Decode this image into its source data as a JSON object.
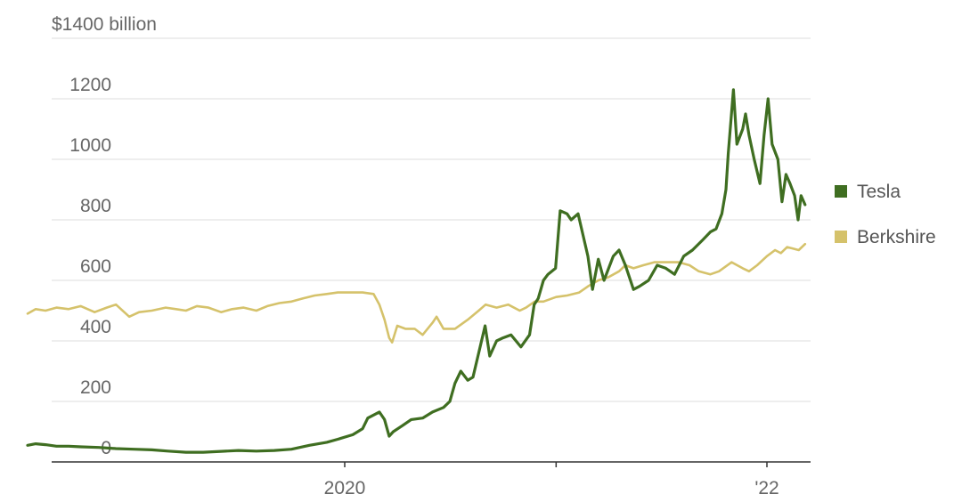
{
  "chart_data": {
    "type": "line",
    "title": "",
    "xlabel": "",
    "ylabel": "",
    "ylim": [
      0,
      1400
    ],
    "y_ticks": [
      {
        "value": 0,
        "label": "0"
      },
      {
        "value": 200,
        "label": "200"
      },
      {
        "value": 400,
        "label": "400"
      },
      {
        "value": 600,
        "label": "600"
      },
      {
        "value": 800,
        "label": "800"
      },
      {
        "value": 1000,
        "label": "1000"
      },
      {
        "value": 1200,
        "label": "1200"
      },
      {
        "value": 1400,
        "label": "$1400 billion"
      }
    ],
    "xlim": [
      "2018-06-01",
      "2022-03-15"
    ],
    "x_ticks": [
      {
        "date": "2020-01-01",
        "label": "2020"
      },
      {
        "date": "2021-01-01",
        "label": ""
      },
      {
        "date": "2022-01-01",
        "label": "'22"
      }
    ],
    "grid": true,
    "legend_position": "right",
    "series": [
      {
        "name": "Tesla",
        "color": "#3f6e21",
        "points": [
          [
            "2018-07-01",
            55
          ],
          [
            "2018-07-15",
            60
          ],
          [
            "2018-08-01",
            57
          ],
          [
            "2018-08-20",
            52
          ],
          [
            "2018-09-10",
            52
          ],
          [
            "2018-10-01",
            50
          ],
          [
            "2018-11-01",
            48
          ],
          [
            "2018-12-01",
            44
          ],
          [
            "2019-01-01",
            42
          ],
          [
            "2019-02-01",
            40
          ],
          [
            "2019-03-01",
            36
          ],
          [
            "2019-04-01",
            32
          ],
          [
            "2019-05-01",
            32
          ],
          [
            "2019-06-01",
            35
          ],
          [
            "2019-07-01",
            38
          ],
          [
            "2019-08-01",
            36
          ],
          [
            "2019-09-01",
            38
          ],
          [
            "2019-10-01",
            42
          ],
          [
            "2019-11-01",
            55
          ],
          [
            "2019-12-01",
            65
          ],
          [
            "2019-12-20",
            75
          ],
          [
            "2020-01-15",
            90
          ],
          [
            "2020-02-01",
            110
          ],
          [
            "2020-02-10",
            145
          ],
          [
            "2020-02-20",
            155
          ],
          [
            "2020-03-01",
            165
          ],
          [
            "2020-03-10",
            140
          ],
          [
            "2020-03-18",
            85
          ],
          [
            "2020-03-25",
            100
          ],
          [
            "2020-04-10",
            120
          ],
          [
            "2020-04-25",
            140
          ],
          [
            "2020-05-15",
            145
          ],
          [
            "2020-06-01",
            165
          ],
          [
            "2020-06-20",
            180
          ],
          [
            "2020-07-01",
            200
          ],
          [
            "2020-07-10",
            260
          ],
          [
            "2020-07-20",
            300
          ],
          [
            "2020-08-01",
            270
          ],
          [
            "2020-08-10",
            280
          ],
          [
            "2020-08-20",
            360
          ],
          [
            "2020-08-31",
            450
          ],
          [
            "2020-09-08",
            350
          ],
          [
            "2020-09-20",
            400
          ],
          [
            "2020-10-01",
            410
          ],
          [
            "2020-10-15",
            420
          ],
          [
            "2020-11-01",
            380
          ],
          [
            "2020-11-16",
            420
          ],
          [
            "2020-11-24",
            520
          ],
          [
            "2020-12-01",
            540
          ],
          [
            "2020-12-10",
            600
          ],
          [
            "2020-12-18",
            620
          ],
          [
            "2020-12-31",
            640
          ],
          [
            "2021-01-08",
            830
          ],
          [
            "2021-01-20",
            820
          ],
          [
            "2021-01-27",
            800
          ],
          [
            "2021-02-08",
            820
          ],
          [
            "2021-02-25",
            680
          ],
          [
            "2021-03-05",
            570
          ],
          [
            "2021-03-15",
            670
          ],
          [
            "2021-03-25",
            600
          ],
          [
            "2021-04-10",
            680
          ],
          [
            "2021-04-20",
            700
          ],
          [
            "2021-05-01",
            650
          ],
          [
            "2021-05-15",
            570
          ],
          [
            "2021-05-25",
            580
          ],
          [
            "2021-06-10",
            600
          ],
          [
            "2021-06-25",
            650
          ],
          [
            "2021-07-10",
            640
          ],
          [
            "2021-07-25",
            620
          ],
          [
            "2021-08-10",
            680
          ],
          [
            "2021-08-25",
            700
          ],
          [
            "2021-09-10",
            730
          ],
          [
            "2021-09-25",
            760
          ],
          [
            "2021-10-05",
            770
          ],
          [
            "2021-10-15",
            820
          ],
          [
            "2021-10-22",
            900
          ],
          [
            "2021-10-26",
            1020
          ],
          [
            "2021-11-04",
            1230
          ],
          [
            "2021-11-10",
            1050
          ],
          [
            "2021-11-20",
            1100
          ],
          [
            "2021-11-25",
            1150
          ],
          [
            "2021-12-01",
            1080
          ],
          [
            "2021-12-10",
            1000
          ],
          [
            "2021-12-20",
            920
          ],
          [
            "2021-12-27",
            1080
          ],
          [
            "2022-01-03",
            1200
          ],
          [
            "2022-01-10",
            1050
          ],
          [
            "2022-01-20",
            1000
          ],
          [
            "2022-01-27",
            860
          ],
          [
            "2022-02-03",
            950
          ],
          [
            "2022-02-10",
            920
          ],
          [
            "2022-02-18",
            880
          ],
          [
            "2022-02-24",
            800
          ],
          [
            "2022-03-01",
            880
          ],
          [
            "2022-03-08",
            850
          ]
        ]
      },
      {
        "name": "Berkshire",
        "color": "#d5c26b",
        "points": [
          [
            "2018-07-01",
            490
          ],
          [
            "2018-07-15",
            505
          ],
          [
            "2018-08-01",
            500
          ],
          [
            "2018-08-20",
            510
          ],
          [
            "2018-09-10",
            505
          ],
          [
            "2018-10-01",
            515
          ],
          [
            "2018-10-25",
            495
          ],
          [
            "2018-11-15",
            510
          ],
          [
            "2018-12-01",
            520
          ],
          [
            "2018-12-24",
            480
          ],
          [
            "2019-01-10",
            495
          ],
          [
            "2019-02-01",
            500
          ],
          [
            "2019-02-25",
            510
          ],
          [
            "2019-03-15",
            505
          ],
          [
            "2019-04-01",
            500
          ],
          [
            "2019-04-20",
            515
          ],
          [
            "2019-05-10",
            510
          ],
          [
            "2019-06-01",
            495
          ],
          [
            "2019-06-20",
            505
          ],
          [
            "2019-07-10",
            510
          ],
          [
            "2019-08-01",
            500
          ],
          [
            "2019-08-20",
            515
          ],
          [
            "2019-09-10",
            525
          ],
          [
            "2019-10-01",
            530
          ],
          [
            "2019-10-20",
            540
          ],
          [
            "2019-11-10",
            550
          ],
          [
            "2019-12-01",
            555
          ],
          [
            "2019-12-20",
            560
          ],
          [
            "2020-01-15",
            560
          ],
          [
            "2020-02-01",
            560
          ],
          [
            "2020-02-20",
            555
          ],
          [
            "2020-03-01",
            520
          ],
          [
            "2020-03-10",
            470
          ],
          [
            "2020-03-18",
            410
          ],
          [
            "2020-03-23",
            395
          ],
          [
            "2020-04-01",
            450
          ],
          [
            "2020-04-15",
            440
          ],
          [
            "2020-05-01",
            440
          ],
          [
            "2020-05-15",
            420
          ],
          [
            "2020-06-01",
            460
          ],
          [
            "2020-06-08",
            480
          ],
          [
            "2020-06-20",
            440
          ],
          [
            "2020-07-10",
            440
          ],
          [
            "2020-08-01",
            470
          ],
          [
            "2020-08-20",
            500
          ],
          [
            "2020-09-01",
            520
          ],
          [
            "2020-09-20",
            510
          ],
          [
            "2020-10-10",
            520
          ],
          [
            "2020-10-30",
            500
          ],
          [
            "2020-11-10",
            510
          ],
          [
            "2020-11-25",
            530
          ],
          [
            "2020-12-10",
            530
          ],
          [
            "2021-01-01",
            545
          ],
          [
            "2021-01-20",
            550
          ],
          [
            "2021-02-10",
            560
          ],
          [
            "2021-02-25",
            580
          ],
          [
            "2021-03-15",
            600
          ],
          [
            "2021-04-01",
            610
          ],
          [
            "2021-04-20",
            630
          ],
          [
            "2021-05-01",
            650
          ],
          [
            "2021-05-15",
            640
          ],
          [
            "2021-06-01",
            650
          ],
          [
            "2021-06-20",
            660
          ],
          [
            "2021-07-10",
            660
          ],
          [
            "2021-08-01",
            660
          ],
          [
            "2021-08-20",
            650
          ],
          [
            "2021-09-05",
            630
          ],
          [
            "2021-09-25",
            620
          ],
          [
            "2021-10-10",
            630
          ],
          [
            "2021-11-01",
            660
          ],
          [
            "2021-11-20",
            640
          ],
          [
            "2021-12-01",
            630
          ],
          [
            "2021-12-15",
            650
          ],
          [
            "2022-01-01",
            680
          ],
          [
            "2022-01-15",
            700
          ],
          [
            "2022-01-25",
            690
          ],
          [
            "2022-02-05",
            710
          ],
          [
            "2022-02-15",
            705
          ],
          [
            "2022-02-25",
            700
          ],
          [
            "2022-03-08",
            720
          ]
        ]
      }
    ]
  }
}
